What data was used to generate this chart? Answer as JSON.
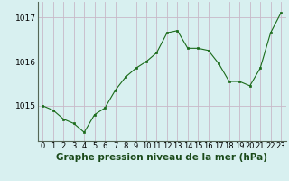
{
  "x": [
    0,
    1,
    2,
    3,
    4,
    5,
    6,
    7,
    8,
    9,
    10,
    11,
    12,
    13,
    14,
    15,
    16,
    17,
    18,
    19,
    20,
    21,
    22,
    23
  ],
  "y": [
    1015.0,
    1014.9,
    1014.7,
    1014.6,
    1014.4,
    1014.8,
    1014.95,
    1015.35,
    1015.65,
    1015.85,
    1016.0,
    1016.2,
    1016.65,
    1016.7,
    1016.3,
    1016.3,
    1016.25,
    1015.95,
    1015.55,
    1015.55,
    1015.45,
    1015.85,
    1016.65,
    1017.1
  ],
  "bg_color": "#d8f0f0",
  "line_color": "#1a6b1a",
  "marker_color": "#1a6b1a",
  "vgrid_color": "#c8b8c8",
  "hgrid_color": "#c8b8c8",
  "xlabel": "Graphe pression niveau de la mer (hPa)",
  "yticks": [
    1015,
    1016,
    1017
  ],
  "ylim": [
    1014.2,
    1017.35
  ],
  "xlim": [
    -0.5,
    23.5
  ],
  "xlabel_fontsize": 7.5,
  "ytick_fontsize": 6.5,
  "xtick_fontsize": 6.0
}
